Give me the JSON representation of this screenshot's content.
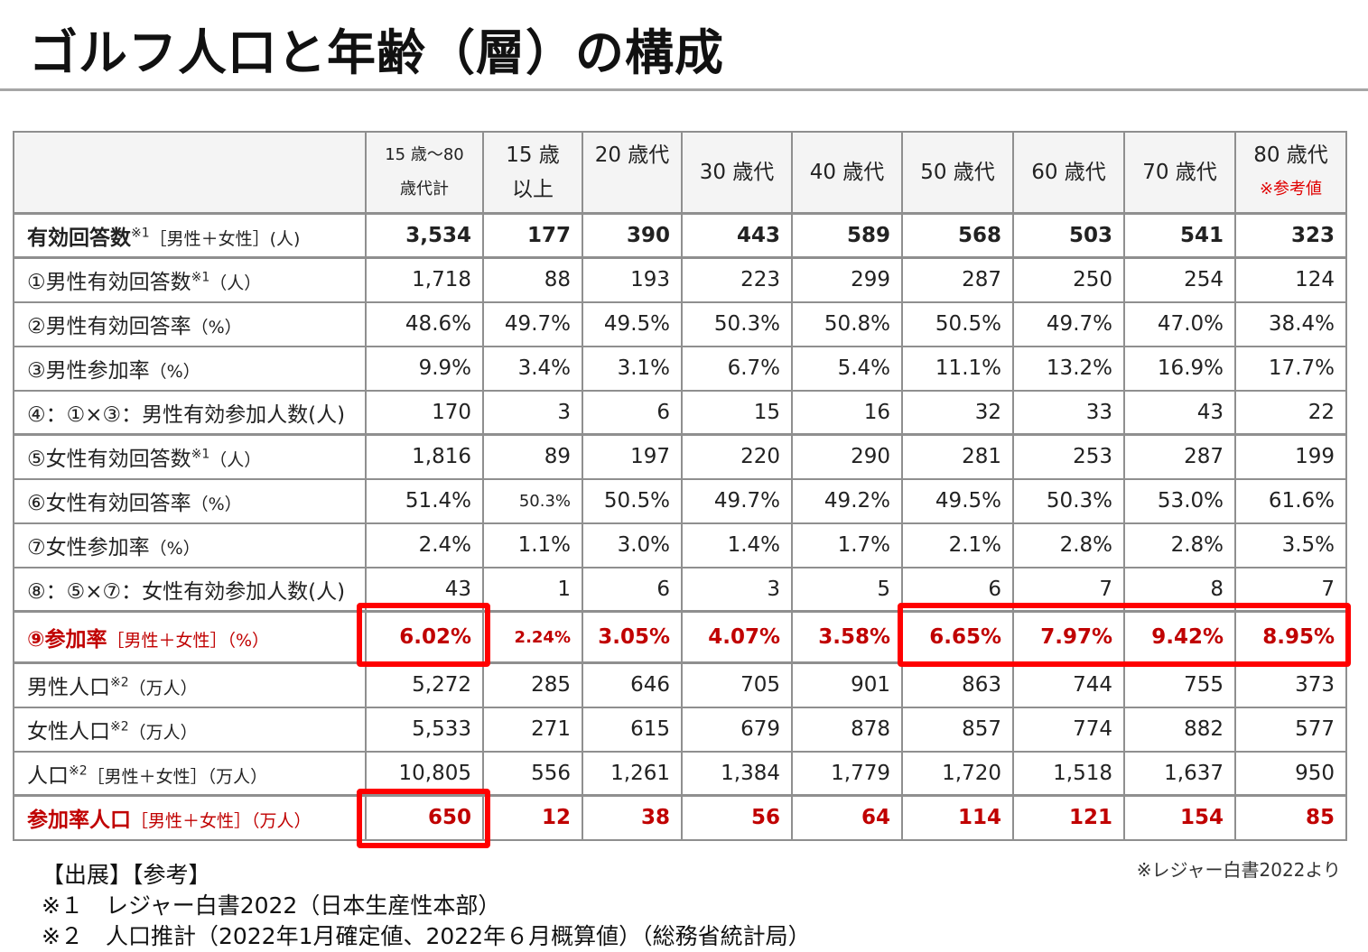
{
  "title": "ゴルフ人口と年齢（層）の構成",
  "header": {
    "corner": "",
    "columns": [
      {
        "line1": "15 歳～80",
        "line2": "歳代計"
      },
      {
        "line1": "15 歳",
        "line2": "以上"
      },
      {
        "line1": "20 歳代",
        "line2": ""
      },
      {
        "line1": "30 歳代",
        "line2": ""
      },
      {
        "line1": "40 歳代",
        "line2": ""
      },
      {
        "line1": "50 歳代",
        "line2": ""
      },
      {
        "line1": "60 歳代",
        "line2": ""
      },
      {
        "line1": "70 歳代",
        "line2": ""
      },
      {
        "line1": "80 歳代",
        "line2": "※参考値"
      }
    ]
  },
  "rows": [
    {
      "label": "有効回答数",
      "sup": "※1",
      "unit": "［男性＋女性］(人)",
      "values": [
        "3,534",
        "177",
        "390",
        "443",
        "589",
        "568",
        "503",
        "541",
        "323"
      ]
    },
    {
      "label": "①男性有効回答数",
      "sup": "※1",
      "unit": "（人）",
      "values": [
        "1,718",
        "88",
        "193",
        "223",
        "299",
        "287",
        "250",
        "254",
        "124"
      ]
    },
    {
      "label": "②男性有効回答率",
      "sup": "",
      "unit": "（%）",
      "values": [
        "48.6%",
        "49.7%",
        "49.5%",
        "50.3%",
        "50.8%",
        "50.5%",
        "49.7%",
        "47.0%",
        "38.4%"
      ]
    },
    {
      "label": "③男性参加率",
      "sup": "",
      "unit": "（%）",
      "values": [
        "9.9%",
        "3.4%",
        "3.1%",
        "6.7%",
        "5.4%",
        "11.1%",
        "13.2%",
        "16.9%",
        "17.7%"
      ]
    },
    {
      "label": "④：①×③：男性有効参加人数(人)",
      "sup": "",
      "unit": "",
      "values": [
        "170",
        "3",
        "6",
        "15",
        "16",
        "32",
        "33",
        "43",
        "22"
      ]
    },
    {
      "label": "⑤女性有効回答数",
      "sup": "※1",
      "unit": "（人）",
      "values": [
        "1,816",
        "89",
        "197",
        "220",
        "290",
        "281",
        "253",
        "287",
        "199"
      ]
    },
    {
      "label": "⑥女性有効回答率",
      "sup": "",
      "unit": "（%）",
      "values": [
        "51.4%",
        "50.3%",
        "50.5%",
        "49.7%",
        "49.2%",
        "49.5%",
        "50.3%",
        "53.0%",
        "61.6%"
      ]
    },
    {
      "label": "⑦女性参加率",
      "sup": "",
      "unit": "（%）",
      "values": [
        "2.4%",
        "1.1%",
        "3.0%",
        "1.4%",
        "1.7%",
        "2.1%",
        "2.8%",
        "2.8%",
        "3.5%"
      ]
    },
    {
      "label": "⑧：⑤×⑦：女性有効参加人数(人)",
      "sup": "",
      "unit": "",
      "values": [
        "43",
        "1",
        "6",
        "3",
        "5",
        "6",
        "7",
        "8",
        "7"
      ]
    },
    {
      "label": "⑨参加率",
      "sup": "",
      "unit": "［男性＋女性］（%）",
      "values": [
        "6.02%",
        "2.24%",
        "3.05%",
        "4.07%",
        "3.58%",
        "6.65%",
        "7.97%",
        "9.42%",
        "8.95%"
      ]
    },
    {
      "label": "男性人口",
      "sup": "※2",
      "unit": "（万人）",
      "values": [
        "5,272",
        "285",
        "646",
        "705",
        "901",
        "863",
        "744",
        "755",
        "373"
      ]
    },
    {
      "label": "女性人口",
      "sup": "※2",
      "unit": "（万人）",
      "values": [
        "5,533",
        "271",
        "615",
        "679",
        "878",
        "857",
        "774",
        "882",
        "577"
      ]
    },
    {
      "label": "人口",
      "sup": "※2",
      "unit": "［男性＋女性］（万人）",
      "values": [
        "10,805",
        "556",
        "1,261",
        "1,384",
        "1,779",
        "1,720",
        "1,518",
        "1,637",
        "950"
      ]
    },
    {
      "label": "参加率人口",
      "sup": "",
      "unit": "［男性＋女性］（万人）",
      "values": [
        "650",
        "12",
        "38",
        "56",
        "64",
        "114",
        "121",
        "154",
        "85"
      ]
    }
  ],
  "notes": {
    "heading": "【出展】【参考】",
    "note1": "※１　レジャー白書2022（日本生産性本部）",
    "note2": "※２　人口推計（2022年1月確定値、2022年６月概算値）（総務省統計局）",
    "source": "※レジャー白書2022より"
  },
  "colors": {
    "highlight": "#ff0000",
    "accent_text": "#c00000",
    "header_bg": "#f4f4f4",
    "grid": "#8f8f8f"
  }
}
